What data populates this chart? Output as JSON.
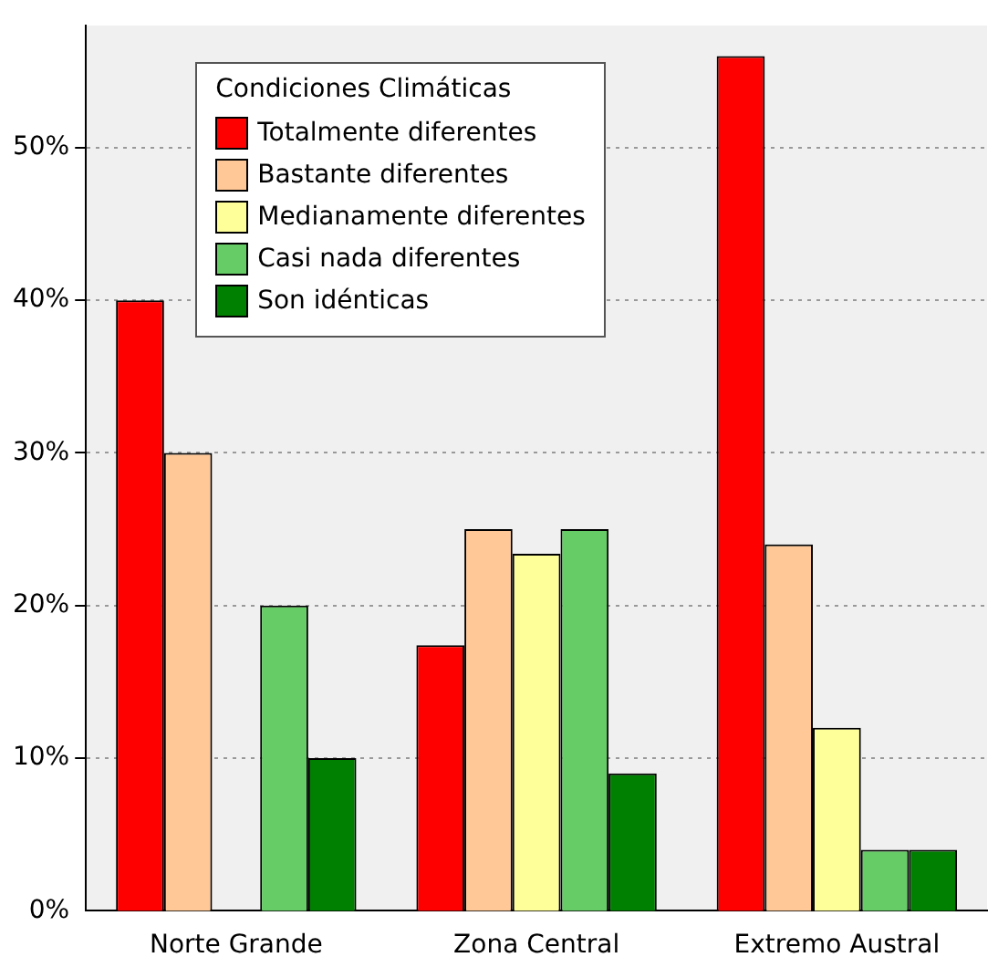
{
  "chart_data": {
    "type": "bar",
    "legend_title": "Condiciones Climáticas",
    "categories": [
      "Norte Grande",
      "Zona Central",
      "Extremo Austral"
    ],
    "series": [
      {
        "name": "Totalmente diferentes",
        "color": "#ff0000",
        "values": [
          40,
          17.4,
          56
        ]
      },
      {
        "name": "Bastante diferentes",
        "color": "#ffc896",
        "values": [
          30,
          25,
          24
        ]
      },
      {
        "name": "Medianamente diferentes",
        "color": "#ffff99",
        "values": [
          null,
          23.4,
          12
        ]
      },
      {
        "name": "Casi nada diferentes",
        "color": "#66cc66",
        "values": [
          20,
          25,
          4
        ]
      },
      {
        "name": "Son idénticas",
        "color": "#008000",
        "values": [
          10,
          9,
          4
        ]
      }
    ],
    "ylim": [
      0,
      58
    ],
    "yticks": [
      {
        "value": 0,
        "label": "0%"
      },
      {
        "value": 10,
        "label": "10%"
      },
      {
        "value": 20,
        "label": "20%"
      },
      {
        "value": 30,
        "label": "30%"
      },
      {
        "value": 40,
        "label": "40%"
      },
      {
        "value": 50,
        "label": "50%"
      }
    ],
    "grid": "y",
    "legend": "top left"
  }
}
